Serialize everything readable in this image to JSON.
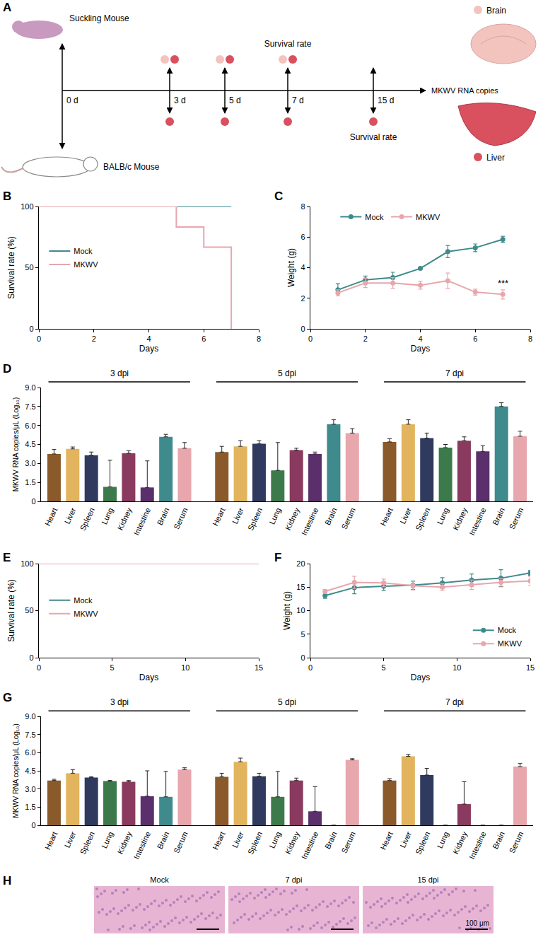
{
  "diagram": {
    "panel_label": "A",
    "mice": [
      {
        "label": "Suckling Mouse"
      },
      {
        "label": "BALB/c Mouse"
      }
    ],
    "timeline": [
      {
        "label": "0 d",
        "top": [],
        "bottom": []
      },
      {
        "label": "3 d",
        "top": [
          "Brain",
          "Liver"
        ],
        "bottom": [
          "Liver"
        ]
      },
      {
        "label": "5 d",
        "top": [
          "Brain",
          "Liver"
        ],
        "bottom": [
          "Liver"
        ]
      },
      {
        "label": "7 d",
        "top": [
          "Brain",
          "Liver"
        ],
        "bottom": [
          "Liver"
        ],
        "note_above": "Survival rate"
      },
      {
        "label": "15 d",
        "top": [],
        "bottom": [
          "Liver"
        ],
        "note_below": "Survival rate"
      }
    ],
    "endpoint": "MKWV RNA copies",
    "organs": [
      {
        "label": "Brain",
        "color": "#f3c3bd"
      },
      {
        "label": "Liver",
        "color": "#d9505e"
      }
    ]
  },
  "chart_data": [
    {
      "panel_label": "B",
      "type": "line",
      "xlabel": "Days",
      "ylabel": "Survival rate (%)",
      "xlim": [
        0,
        8
      ],
      "xticks": [
        0,
        2,
        4,
        6,
        8
      ],
      "ylim": [
        0,
        100
      ],
      "yticks": [
        0,
        50,
        100
      ],
      "grid": false,
      "legend": "middle left",
      "series": [
        {
          "name": "Mock",
          "color": "#3f8a8c",
          "line_style": "step",
          "x": [
            0,
            7
          ],
          "values": [
            100,
            100
          ]
        },
        {
          "name": "MKWV",
          "color": "#e8a6ad",
          "line_style": "step",
          "x": [
            0,
            5,
            6,
            7
          ],
          "values": [
            100,
            83.3,
            66.7,
            0
          ]
        }
      ]
    },
    {
      "panel_label": "C",
      "type": "line",
      "xlabel": "Days",
      "ylabel": "Weight (g)",
      "xlim": [
        0,
        8
      ],
      "xticks": [
        0,
        2,
        4,
        6,
        8
      ],
      "ylim": [
        0,
        8
      ],
      "yticks": [
        0,
        2,
        4,
        6,
        8
      ],
      "grid": false,
      "legend": "top",
      "series": [
        {
          "name": "Mock",
          "color": "#3f8a8c",
          "line_style": "solid",
          "marker": "circle",
          "x": [
            1,
            2,
            3,
            4,
            5,
            6,
            7
          ],
          "values": [
            2.55,
            3.2,
            3.35,
            3.95,
            5.05,
            5.3,
            5.85
          ],
          "errors": [
            0.4,
            0.25,
            0.35,
            0.05,
            0.4,
            0.25,
            0.2
          ]
        },
        {
          "name": "MKWV",
          "color": "#e8a6ad",
          "line_style": "solid",
          "marker": "circle",
          "x": [
            1,
            2,
            3,
            4,
            5,
            6,
            7
          ],
          "values": [
            2.35,
            3.0,
            3.0,
            2.85,
            3.15,
            2.4,
            2.25
          ],
          "errors": [
            0.2,
            0.3,
            0.35,
            0.25,
            0.5,
            0.2,
            0.3
          ]
        }
      ],
      "annotations": [
        {
          "text": "***",
          "x": 7,
          "series": "MKWV"
        }
      ]
    },
    {
      "panel_label": "D",
      "type": "bar",
      "ylabel": "MKWV RNA copies/μL (Log₁₀)",
      "categories": [
        "Heart",
        "Liver",
        "Spleen",
        "Lung",
        "Kidney",
        "Intestine",
        "Brain",
        "Serum"
      ],
      "colors": [
        "#8b5a2b",
        "#e2b45e",
        "#2f3a5e",
        "#3c7a4b",
        "#8a3a5e",
        "#5b2f6c",
        "#3f8a8c",
        "#e8a6ad"
      ],
      "ylim": [
        0,
        9
      ],
      "yticks": [
        0,
        1.5,
        {
          "value": 3,
          "label": "3.0"
        },
        4.5,
        {
          "value": 6,
          "label": "6.0"
        },
        7.5,
        {
          "value": 9,
          "label": "9.0"
        }
      ],
      "grid": false,
      "groups": [
        {
          "name": "3 dpi",
          "values": [
            3.75,
            4.15,
            3.65,
            1.15,
            3.8,
            1.1,
            5.1,
            4.2
          ],
          "errors": [
            0.35,
            0.15,
            0.25,
            2.1,
            0.2,
            2.1,
            0.2,
            0.45
          ]
        },
        {
          "name": "5 dpi",
          "values": [
            3.9,
            4.35,
            4.55,
            2.45,
            4.05,
            3.75,
            6.1,
            5.4
          ],
          "errors": [
            0.45,
            0.45,
            0.25,
            2.2,
            0.15,
            0.15,
            0.35,
            0.35
          ]
        },
        {
          "name": "7 dpi",
          "values": [
            4.7,
            6.1,
            5.0,
            4.25,
            4.8,
            3.95,
            7.5,
            5.15
          ],
          "errors": [
            0.25,
            0.35,
            0.4,
            0.25,
            0.3,
            0.45,
            0.3,
            0.4
          ]
        }
      ]
    },
    {
      "panel_label": "E",
      "type": "line",
      "xlabel": "Days",
      "ylabel": "Survival rate (%)",
      "xlim": [
        0,
        15
      ],
      "xticks": [
        0,
        5,
        10,
        15
      ],
      "ylim": [
        0,
        100
      ],
      "yticks": [
        0,
        50,
        100
      ],
      "grid": false,
      "legend": "middle left",
      "series": [
        {
          "name": "Mock",
          "color": "#3f8a8c",
          "line_style": "step",
          "x": [
            0,
            15
          ],
          "values": [
            100,
            100
          ]
        },
        {
          "name": "MKWV",
          "color": "#e8a6ad",
          "line_style": "step",
          "x": [
            0,
            15
          ],
          "values": [
            100,
            100
          ]
        }
      ]
    },
    {
      "panel_label": "F",
      "type": "line",
      "xlabel": "Days",
      "ylabel": "Weight (g)",
      "xlim": [
        0,
        15
      ],
      "xticks": [
        0,
        5,
        10,
        15
      ],
      "ylim": [
        0,
        20
      ],
      "yticks": [
        0,
        5,
        10,
        15,
        20
      ],
      "grid": false,
      "legend": "bottom right",
      "series": [
        {
          "name": "Mock",
          "color": "#3f8a8c",
          "line_style": "solid",
          "marker": "circle",
          "x": [
            1,
            3,
            5,
            7,
            9,
            11,
            13,
            15
          ],
          "values": [
            13.2,
            14.9,
            15.2,
            15.4,
            15.9,
            16.5,
            16.9,
            18.0
          ],
          "errors": [
            0.6,
            1.3,
            0.9,
            0.9,
            1.1,
            1.3,
            1.8,
            0.5
          ]
        },
        {
          "name": "MKWV",
          "color": "#e8a6ad",
          "line_style": "solid",
          "marker": "circle",
          "x": [
            1,
            3,
            5,
            7,
            9,
            11,
            13,
            15
          ],
          "values": [
            14.1,
            16.0,
            15.9,
            15.3,
            15.0,
            15.5,
            16.0,
            16.3
          ],
          "errors": [
            0.4,
            1.3,
            0.8,
            0.9,
            0.7,
            1.0,
            0.8,
            1.0
          ]
        }
      ]
    },
    {
      "panel_label": "G",
      "type": "bar",
      "ylabel": "MKWV RNA copies/μL (Log₁₀)",
      "categories": [
        "Heart",
        "Liver",
        "Spleen",
        "Lung",
        "Kidney",
        "Intestine",
        "Brain",
        "Serum"
      ],
      "colors": [
        "#8b5a2b",
        "#e2b45e",
        "#2f3a5e",
        "#3c7a4b",
        "#8a3a5e",
        "#5b2f6c",
        "#3f8a8c",
        "#e8a6ad"
      ],
      "ylim": [
        0,
        9
      ],
      "yticks": [
        0,
        1.5,
        {
          "value": 3,
          "label": "3.0"
        },
        4.5,
        {
          "value": 6,
          "label": "6.0"
        },
        7.5,
        {
          "value": 9,
          "label": "9.0"
        }
      ],
      "grid": false,
      "groups": [
        {
          "name": "3 dpi",
          "values": [
            3.7,
            4.3,
            3.95,
            3.65,
            3.6,
            2.4,
            2.35,
            4.6
          ],
          "errors": [
            0.1,
            0.3,
            0.05,
            0.05,
            0.1,
            2.1,
            2.1,
            0.15
          ]
        },
        {
          "name": "5 dpi",
          "values": [
            4.0,
            5.25,
            4.05,
            2.35,
            3.7,
            1.15,
            0,
            5.4
          ],
          "errors": [
            0.3,
            0.3,
            0.25,
            2.1,
            0.2,
            2.05,
            0,
            0.1
          ]
        },
        {
          "name": "7 dpi",
          "values": [
            3.7,
            5.7,
            4.15,
            0,
            1.75,
            0,
            0,
            4.85
          ],
          "errors": [
            0.15,
            0.15,
            0.55,
            0,
            1.85,
            0,
            0,
            0.25
          ]
        }
      ]
    }
  ],
  "images": {
    "panel_label": "H",
    "titles": [
      "Mock",
      "7 dpi",
      "15 dpi"
    ],
    "scale_bar": "100 μm"
  }
}
